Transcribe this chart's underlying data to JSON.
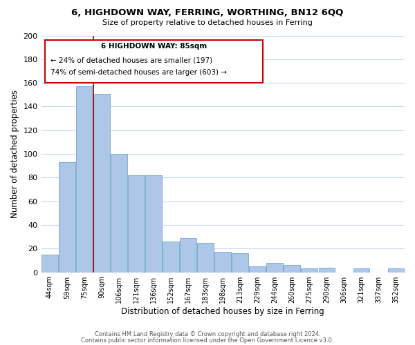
{
  "title": "6, HIGHDOWN WAY, FERRING, WORTHING, BN12 6QQ",
  "subtitle": "Size of property relative to detached houses in Ferring",
  "xlabel": "Distribution of detached houses by size in Ferring",
  "ylabel": "Number of detached properties",
  "categories": [
    "44sqm",
    "59sqm",
    "75sqm",
    "90sqm",
    "106sqm",
    "121sqm",
    "136sqm",
    "152sqm",
    "167sqm",
    "183sqm",
    "198sqm",
    "213sqm",
    "229sqm",
    "244sqm",
    "260sqm",
    "275sqm",
    "290sqm",
    "306sqm",
    "321sqm",
    "337sqm",
    "352sqm"
  ],
  "values": [
    15,
    93,
    157,
    151,
    100,
    82,
    82,
    26,
    29,
    25,
    17,
    16,
    5,
    8,
    6,
    3,
    4,
    0,
    3,
    0,
    3
  ],
  "bar_color": "#aec6e8",
  "bar_edge_color": "#7fafd4",
  "vline_x_index": 2,
  "vline_color": "#990000",
  "annotation_title": "6 HIGHDOWN WAY: 85sqm",
  "annotation_line1": "← 24% of detached houses are smaller (197)",
  "annotation_line2": "74% of semi-detached houses are larger (603) →",
  "annotation_box_edge": "#cc0000",
  "ylim": [
    0,
    200
  ],
  "yticks": [
    0,
    20,
    40,
    60,
    80,
    100,
    120,
    140,
    160,
    180,
    200
  ],
  "footer1": "Contains HM Land Registry data © Crown copyright and database right 2024.",
  "footer2": "Contains public sector information licensed under the Open Government Licence v3.0.",
  "background_color": "#ffffff",
  "grid_color": "#c8d8e8"
}
